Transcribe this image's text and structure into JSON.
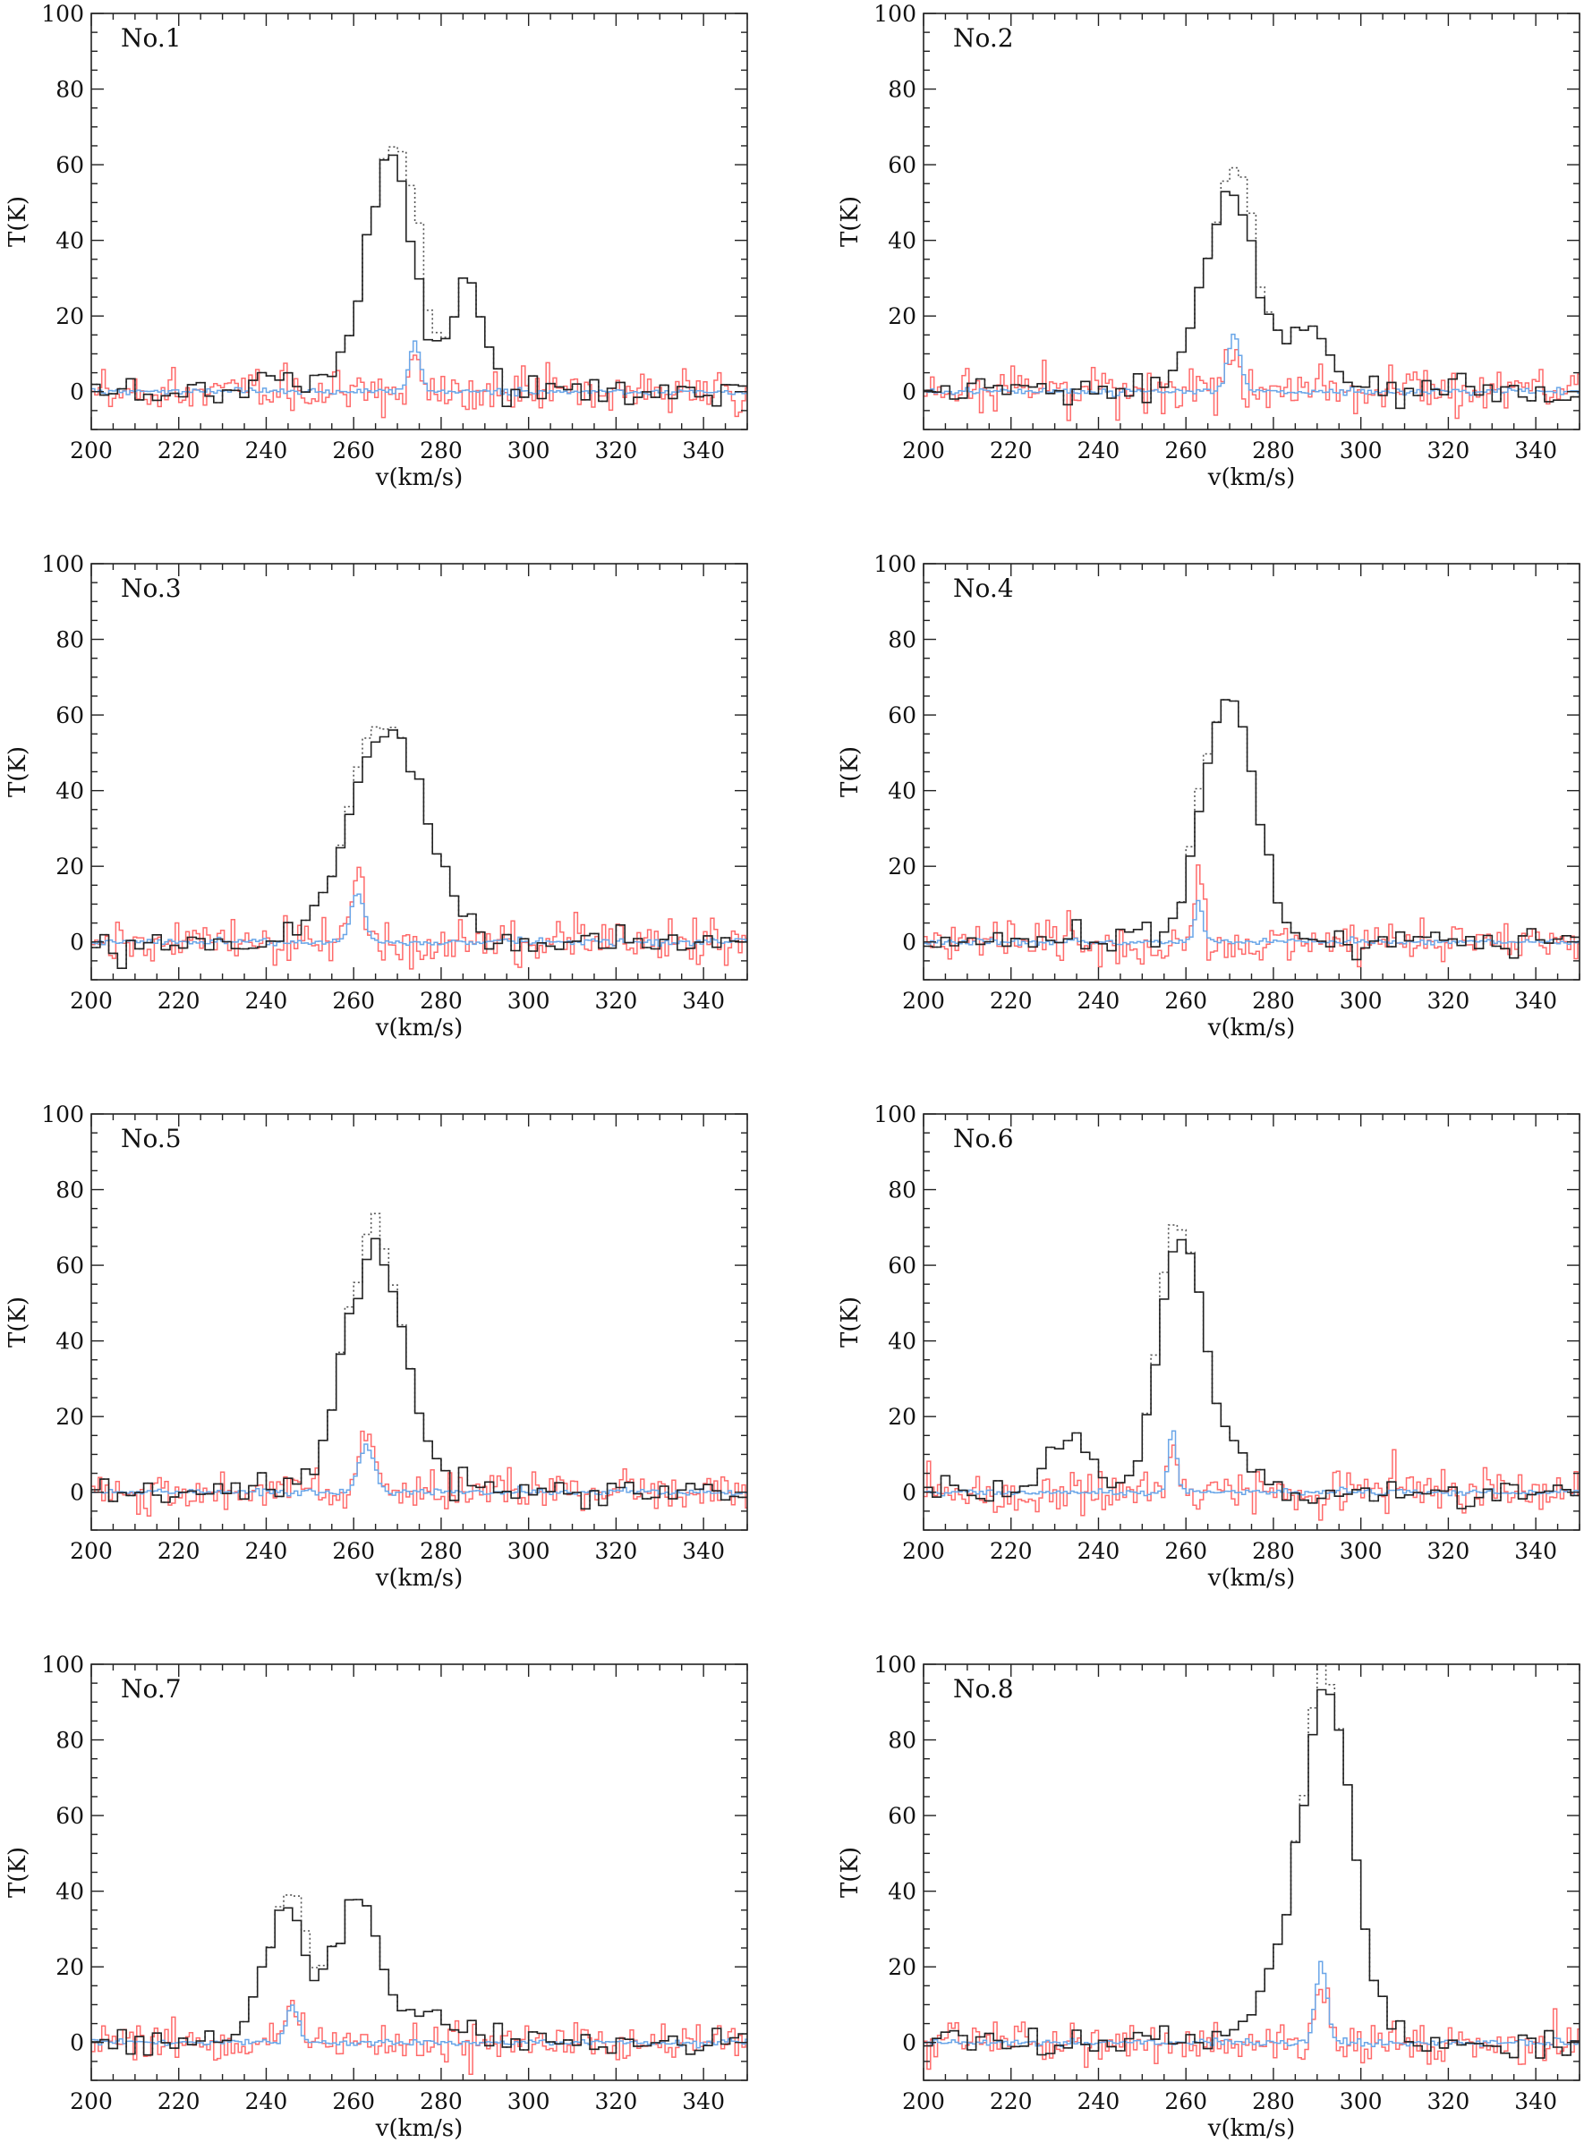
{
  "chart_data": {
    "type": "line",
    "layout": "4 rows x 2 columns",
    "xlabel": "v(km/s)",
    "ylabel": "T(K)",
    "xlim": [
      200,
      350
    ],
    "ylim": [
      -10,
      100
    ],
    "xticks": [
      200,
      220,
      240,
      260,
      280,
      300,
      320,
      340
    ],
    "yticks": [
      0,
      20,
      40,
      60,
      80,
      100
    ],
    "colors": {
      "main": "#222222",
      "dotted": "#555555",
      "red": "#ff6b6b",
      "blue": "#6aa6e8"
    },
    "panels": [
      {
        "label": "No.1",
        "main_components": [
          {
            "v0": 268,
            "amp": 62,
            "sigma": 5.5
          },
          {
            "v0": 286,
            "amp": 30,
            "sigma": 3.5
          },
          {
            "v0": 244,
            "amp": 6,
            "sigma": 4
          }
        ],
        "dotted_components": [
          {
            "v0": 268,
            "amp": 62,
            "sigma": 5.5
          },
          {
            "v0": 274,
            "amp": 16,
            "sigma": 2.5
          },
          {
            "v0": 286,
            "amp": 30,
            "sigma": 3.5
          },
          {
            "v0": 244,
            "amp": 6,
            "sigma": 4
          }
        ],
        "narrow_peak": {
          "v0": 274,
          "red_amp": 12,
          "blue_amp": 13,
          "sigma": 1.2
        }
      },
      {
        "label": "No.2",
        "main_components": [
          {
            "v0": 270,
            "amp": 52,
            "sigma": 6
          },
          {
            "v0": 288,
            "amp": 16,
            "sigma": 5
          }
        ],
        "dotted_components": [
          {
            "v0": 270,
            "amp": 52,
            "sigma": 6
          },
          {
            "v0": 273,
            "amp": 10,
            "sigma": 2.5
          },
          {
            "v0": 288,
            "amp": 16,
            "sigma": 5
          }
        ],
        "narrow_peak": {
          "v0": 271,
          "red_amp": 14,
          "blue_amp": 15,
          "sigma": 1.4
        }
      },
      {
        "label": "No.3",
        "main_components": [
          {
            "v0": 268,
            "amp": 55,
            "sigma": 9
          }
        ],
        "dotted_components": [
          {
            "v0": 268,
            "amp": 55,
            "sigma": 9
          },
          {
            "v0": 263,
            "amp": 5,
            "sigma": 3
          }
        ],
        "narrow_peak": {
          "v0": 261,
          "red_amp": 19,
          "blue_amp": 13,
          "sigma": 1.5
        }
      },
      {
        "label": "No.4",
        "main_components": [
          {
            "v0": 270,
            "amp": 64,
            "sigma": 6
          },
          {
            "v0": 250,
            "amp": 4,
            "sigma": 4
          }
        ],
        "dotted_components": [
          {
            "v0": 270,
            "amp": 64,
            "sigma": 6
          },
          {
            "v0": 263,
            "amp": 6,
            "sigma": 1.5
          },
          {
            "v0": 250,
            "amp": 4,
            "sigma": 4
          }
        ],
        "narrow_peak": {
          "v0": 263,
          "red_amp": 20,
          "blue_amp": 11,
          "sigma": 0.9
        }
      },
      {
        "label": "No.5",
        "main_components": [
          {
            "v0": 265,
            "amp": 62,
            "sigma": 7
          }
        ],
        "dotted_components": [
          {
            "v0": 265,
            "amp": 62,
            "sigma": 7
          },
          {
            "v0": 264,
            "amp": 7,
            "sigma": 3
          }
        ],
        "narrow_peak": {
          "v0": 263,
          "red_amp": 13,
          "blue_amp": 12,
          "sigma": 1.8
        }
      },
      {
        "label": "No.6",
        "main_components": [
          {
            "v0": 259,
            "amp": 68,
            "sigma": 5
          },
          {
            "v0": 233,
            "amp": 13,
            "sigma": 5
          },
          {
            "v0": 272,
            "amp": 10,
            "sigma": 5
          }
        ],
        "dotted_components": [
          {
            "v0": 259,
            "amp": 68,
            "sigma": 5
          },
          {
            "v0": 256,
            "amp": 8,
            "sigma": 2
          },
          {
            "v0": 233,
            "amp": 13,
            "sigma": 5
          },
          {
            "v0": 272,
            "amp": 10,
            "sigma": 5
          }
        ],
        "narrow_peak": {
          "v0": 257,
          "red_amp": 15,
          "blue_amp": 17,
          "sigma": 0.9
        }
      },
      {
        "label": "No.7",
        "main_components": [
          {
            "v0": 244,
            "amp": 36,
            "sigma": 5
          },
          {
            "v0": 261,
            "amp": 38,
            "sigma": 5
          },
          {
            "v0": 278,
            "amp": 8,
            "sigma": 6
          }
        ],
        "dotted_components": [
          {
            "v0": 244,
            "amp": 36,
            "sigma": 5
          },
          {
            "v0": 248,
            "amp": 7,
            "sigma": 2.5
          },
          {
            "v0": 261,
            "amp": 38,
            "sigma": 5
          },
          {
            "v0": 278,
            "amp": 8,
            "sigma": 6
          }
        ],
        "narrow_peak": {
          "v0": 246,
          "red_amp": 11,
          "blue_amp": 10,
          "sigma": 1.4
        }
      },
      {
        "label": "No.8",
        "main_components": [
          {
            "v0": 292,
            "amp": 92,
            "sigma": 6
          },
          {
            "v0": 278,
            "amp": 8,
            "sigma": 6
          }
        ],
        "dotted_components": [
          {
            "v0": 292,
            "amp": 92,
            "sigma": 6
          },
          {
            "v0": 290,
            "amp": 8,
            "sigma": 2
          },
          {
            "v0": 278,
            "amp": 8,
            "sigma": 6
          }
        ],
        "narrow_peak": {
          "v0": 291,
          "red_amp": 12,
          "blue_amp": 21,
          "sigma": 1.3
        }
      }
    ]
  }
}
